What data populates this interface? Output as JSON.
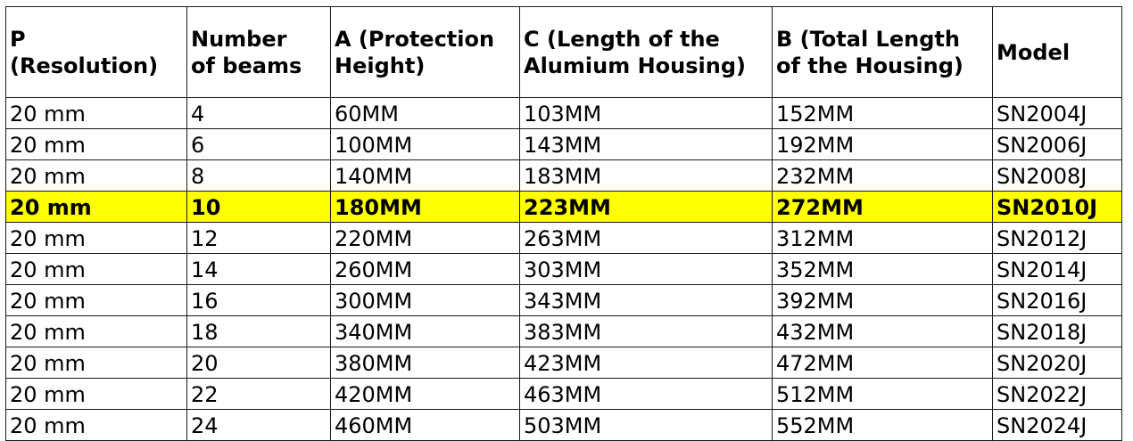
{
  "table": {
    "headers": [
      "P\n(Resolution)",
      "Number\nof beams",
      "A (Protection\n Height)",
      "C (Length of the\nAlumium Housing)",
      "B (Total Length\nof the Housing)",
      "Model"
    ],
    "rows": [
      {
        "highlight": false,
        "cells": [
          "20 mm",
          "4",
          "60MM",
          "103MM",
          "152MM",
          "SN2004J"
        ]
      },
      {
        "highlight": false,
        "cells": [
          "20 mm",
          "6",
          "100MM",
          "143MM",
          "192MM",
          "SN2006J"
        ]
      },
      {
        "highlight": false,
        "cells": [
          "20 mm",
          "8",
          "140MM",
          "183MM",
          "232MM",
          "SN2008J"
        ]
      },
      {
        "highlight": true,
        "cells": [
          "20 mm",
          "10",
          "180MM",
          "223MM",
          "272MM",
          "SN2010J"
        ]
      },
      {
        "highlight": false,
        "cells": [
          "20 mm",
          "12",
          "220MM",
          "263MM",
          "312MM",
          "SN2012J"
        ]
      },
      {
        "highlight": false,
        "cells": [
          "20 mm",
          "14",
          "260MM",
          "303MM",
          "352MM",
          "SN2014J"
        ]
      },
      {
        "highlight": false,
        "cells": [
          "20 mm",
          "16",
          "300MM",
          "343MM",
          "392MM",
          "SN2016J"
        ]
      },
      {
        "highlight": false,
        "cells": [
          "20 mm",
          "18",
          "340MM",
          "383MM",
          "432MM",
          "SN2018J"
        ]
      },
      {
        "highlight": false,
        "cells": [
          "20 mm",
          "20",
          "380MM",
          "423MM",
          "472MM",
          "SN2020J"
        ]
      },
      {
        "highlight": false,
        "cells": [
          "20 mm",
          "22",
          "420MM",
          "463MM",
          "512MM",
          "SN2022J"
        ]
      },
      {
        "highlight": false,
        "cells": [
          "20 mm",
          "24",
          "460MM",
          "503MM",
          "552MM",
          "SN2024J"
        ]
      }
    ],
    "highlight_color": "#ffff00",
    "border_color": "#1a1a1a"
  }
}
